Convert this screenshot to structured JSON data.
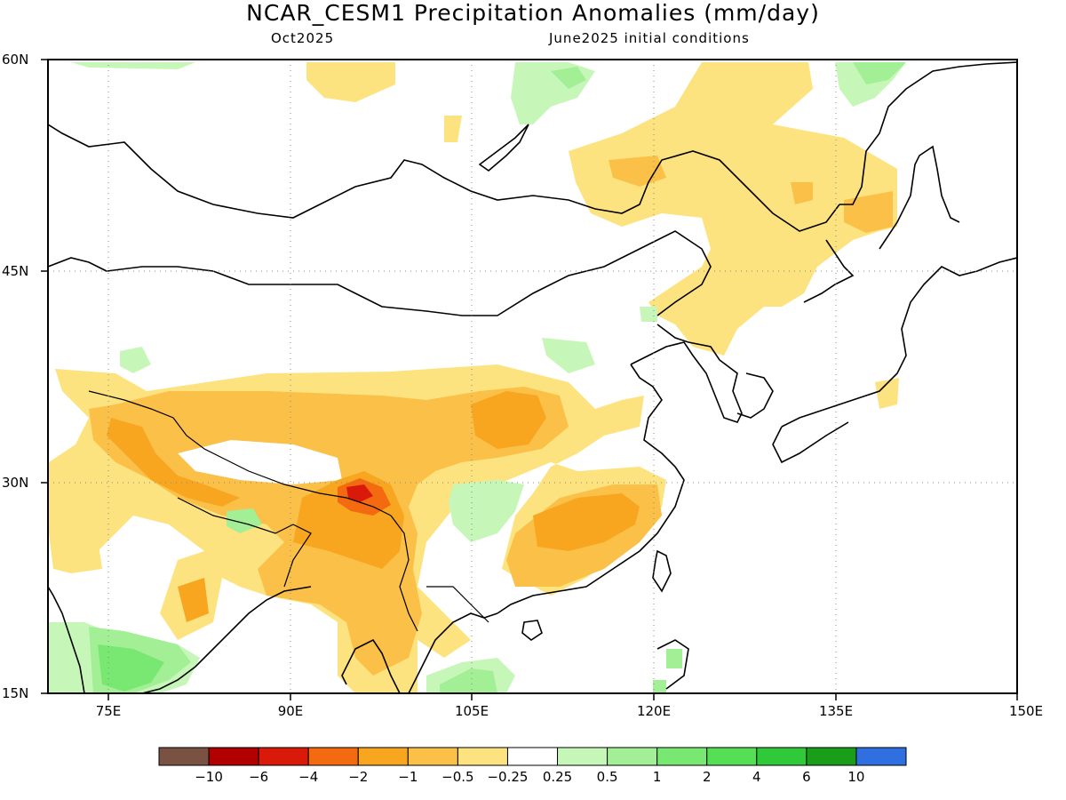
{
  "title": "NCAR_CESM1 Precipitation Anomalies (mm/day)",
  "subtitle_left": "Oct2025",
  "subtitle_right": "June2025 initial conditions",
  "map": {
    "lat_labels": [
      "60N",
      "45N",
      "30N",
      "15N"
    ],
    "lon_labels": [
      "75E",
      "90E",
      "105E",
      "120E",
      "135E",
      "150E"
    ],
    "lon_range": [
      70,
      150
    ],
    "lat_range": [
      15,
      60
    ],
    "grid": "dotted",
    "coastlines": "black"
  },
  "colorbar": {
    "colors": [
      "#7a5244",
      "#b00000",
      "#d91a0a",
      "#f46a10",
      "#f8a520",
      "#fbc048",
      "#fde37f",
      "#ffffff",
      "#c6f7b8",
      "#a2ef95",
      "#78e872",
      "#55df55",
      "#2fc93a",
      "#1a9e1a",
      "#2f6fe0"
    ],
    "labels": [
      "−10",
      "−6",
      "−4",
      "−2",
      "−1",
      "−0.5",
      "−0.25",
      "0.25",
      "0.5",
      "1",
      "2",
      "4",
      "6",
      "10"
    ]
  }
}
